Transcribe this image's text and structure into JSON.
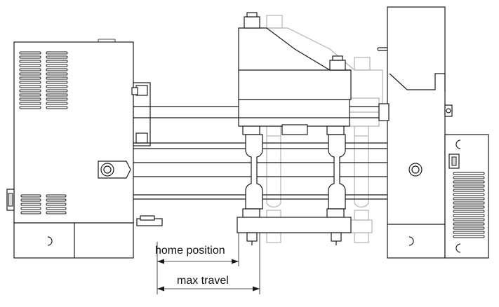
{
  "labels": {
    "home_position": "home position",
    "max_travel": "max travel"
  },
  "colors": {
    "line": "#1a1a1a",
    "ghost_outline": "#b4b4b4",
    "background": "#ffffff"
  }
}
